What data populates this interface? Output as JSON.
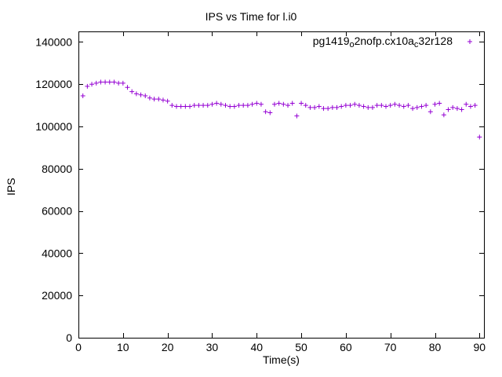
{
  "page": {
    "background": "#ffffff",
    "text_color": "#000000"
  },
  "chart_data": {
    "type": "scatter",
    "title": "IPS vs Time for l.i0",
    "xlabel": "Time(s)",
    "ylabel": "IPS",
    "xlim": [
      0,
      91
    ],
    "ylim": [
      0,
      145000
    ],
    "xticks": [
      0,
      10,
      20,
      30,
      40,
      50,
      60,
      70,
      80,
      90
    ],
    "yticks": [
      0,
      20000,
      40000,
      60000,
      80000,
      100000,
      120000,
      140000
    ],
    "grid": false,
    "legend_position": "top-right-inside",
    "marker": "plus",
    "series": [
      {
        "name": "pg1419_o2nofp.cx10a_c32r128",
        "color": "#9400d3",
        "x": [
          1,
          2,
          3,
          4,
          5,
          6,
          7,
          8,
          9,
          10,
          11,
          12,
          13,
          14,
          15,
          16,
          17,
          18,
          19,
          20,
          21,
          22,
          23,
          24,
          25,
          26,
          27,
          28,
          29,
          30,
          31,
          32,
          33,
          34,
          35,
          36,
          37,
          38,
          39,
          40,
          41,
          42,
          43,
          44,
          45,
          46,
          47,
          48,
          49,
          50,
          51,
          52,
          53,
          54,
          55,
          56,
          57,
          58,
          59,
          60,
          61,
          62,
          63,
          64,
          65,
          66,
          67,
          68,
          69,
          70,
          71,
          72,
          73,
          74,
          75,
          76,
          77,
          78,
          79,
          80,
          81,
          82,
          83,
          84,
          85,
          86,
          87,
          88,
          89,
          90
        ],
        "y": [
          114500,
          119000,
          120000,
          120500,
          121000,
          121000,
          121000,
          121000,
          120500,
          120500,
          118500,
          116500,
          115500,
          115000,
          114500,
          113500,
          113000,
          113000,
          112500,
          112000,
          110000,
          109500,
          109500,
          109500,
          109500,
          110000,
          110000,
          110000,
          110000,
          110500,
          111000,
          110500,
          110000,
          109500,
          109500,
          110000,
          110000,
          110000,
          110500,
          111000,
          110500,
          107000,
          106500,
          110500,
          111000,
          110500,
          110000,
          111000,
          105000,
          111000,
          110000,
          109000,
          109000,
          109500,
          108500,
          108500,
          109000,
          109000,
          109500,
          110000,
          110000,
          110500,
          110000,
          109500,
          109000,
          109000,
          110000,
          110000,
          109500,
          110000,
          110500,
          110000,
          109500,
          110000,
          108500,
          109000,
          109500,
          110000,
          107000,
          110500,
          111000,
          105500,
          108000,
          109000,
          108500,
          108000,
          110500,
          109500,
          110000,
          95000
        ]
      }
    ]
  }
}
